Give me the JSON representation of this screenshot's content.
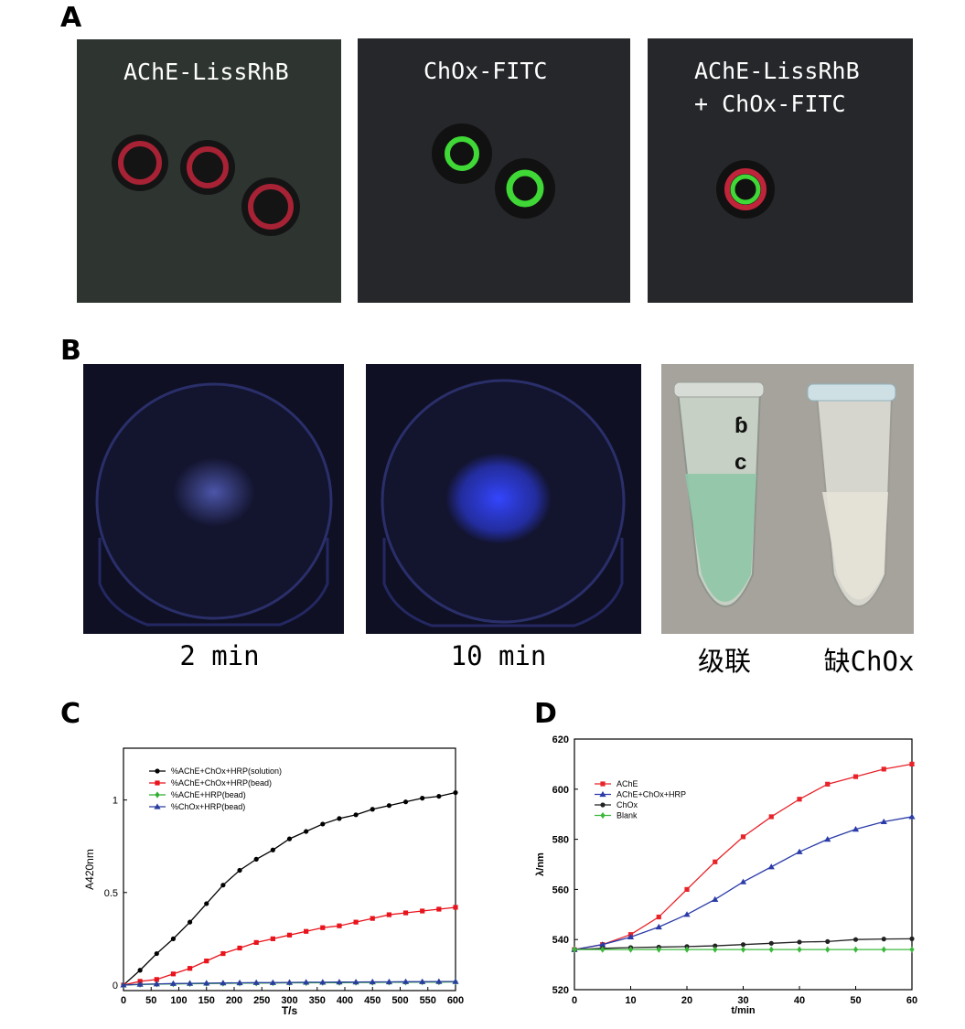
{
  "panel_letters": {
    "a": "A",
    "b": "B",
    "c": "C",
    "d": "D"
  },
  "panel_a": {
    "images": [
      {
        "label": "AChE-LissRhB",
        "background": "#2e3530"
      },
      {
        "label": "ChOx-FITC",
        "background": "#25272a"
      },
      {
        "label": "AChE-LissRhB\n+ ChOx-FITC",
        "background": "#25272a"
      }
    ],
    "colors": {
      "red_ring": "#c0243a",
      "green_ring": "#3fd836"
    }
  },
  "panel_b": {
    "captions": [
      "2 min",
      "10 min",
      "级联",
      "缺ChOx"
    ],
    "colors": {
      "dark_blue": "#10122a",
      "blue_glow": "#3b4fe0",
      "tube_green": "#8fc6a8"
    }
  },
  "chart_data": [
    {
      "type": "line",
      "panel": "C",
      "xlabel": "T/s",
      "ylabel": "A420nm",
      "xlim": [
        0,
        600
      ],
      "ylim": [
        -0.03,
        1.28
      ],
      "xticks": [
        0,
        50,
        100,
        150,
        200,
        250,
        300,
        350,
        400,
        450,
        500,
        550,
        600
      ],
      "yticks": [
        0,
        0.5,
        1
      ],
      "ytick_labels": [
        "0",
        "0.5",
        "1"
      ],
      "legend_position": "top-left",
      "x": [
        0,
        30,
        60,
        90,
        120,
        150,
        180,
        210,
        240,
        270,
        300,
        330,
        360,
        390,
        420,
        450,
        480,
        510,
        540,
        570,
        600
      ],
      "series": [
        {
          "name": "%AChE+ChOx+HRP(solution)",
          "color": "#000000",
          "marker": "circle",
          "values": [
            0,
            0.08,
            0.17,
            0.25,
            0.34,
            0.44,
            0.54,
            0.62,
            0.68,
            0.73,
            0.79,
            0.83,
            0.87,
            0.9,
            0.92,
            0.95,
            0.97,
            0.99,
            1.01,
            1.02,
            1.04
          ]
        },
        {
          "name": "%AChE+ChOx+HRP(bead)",
          "color": "#e8131b",
          "marker": "square",
          "values": [
            0,
            0.02,
            0.03,
            0.06,
            0.09,
            0.13,
            0.17,
            0.2,
            0.23,
            0.25,
            0.27,
            0.29,
            0.31,
            0.32,
            0.34,
            0.36,
            0.38,
            0.39,
            0.4,
            0.41,
            0.42
          ]
        },
        {
          "name": "%AChE+HRP(bead)",
          "color": "#2fae2f",
          "marker": "diamond",
          "values": [
            0,
            0.003,
            0.005,
            0.006,
            0.007,
            0.008,
            0.009,
            0.01,
            0.01,
            0.011,
            0.012,
            0.012,
            0.013,
            0.013,
            0.014,
            0.014,
            0.015,
            0.015,
            0.016,
            0.016,
            0.017
          ]
        },
        {
          "name": "%ChOx+HRP(bead)",
          "color": "#2a3d9e",
          "marker": "triangle",
          "values": [
            0,
            0.004,
            0.006,
            0.008,
            0.009,
            0.01,
            0.011,
            0.012,
            0.013,
            0.013,
            0.014,
            0.015,
            0.015,
            0.016,
            0.016,
            0.017,
            0.017,
            0.018,
            0.018,
            0.019,
            0.019
          ]
        }
      ]
    },
    {
      "type": "line",
      "panel": "D",
      "xlabel": "t/min",
      "ylabel": "λ/nm",
      "xlim": [
        0,
        60
      ],
      "ylim": [
        520,
        620
      ],
      "xticks": [
        0,
        10,
        20,
        30,
        40,
        50,
        60
      ],
      "yticks": [
        520,
        540,
        560,
        580,
        600,
        620
      ],
      "legend_position": "top-left",
      "x": [
        0,
        5,
        10,
        15,
        20,
        25,
        30,
        35,
        40,
        45,
        50,
        55,
        60
      ],
      "series": [
        {
          "name": "AChE",
          "color": "#e8232a",
          "marker": "square",
          "values": [
            536,
            538,
            542,
            549,
            560,
            571,
            581,
            589,
            596,
            602,
            605,
            608,
            610
          ]
        },
        {
          "name": "AChE+ChOx+HRP",
          "color": "#2b3ca8",
          "marker": "triangle",
          "values": [
            536,
            538,
            541,
            545,
            550,
            556,
            563,
            569,
            575,
            580,
            584,
            587,
            589
          ]
        },
        {
          "name": "ChOx",
          "color": "#222222",
          "marker": "circle",
          "values": [
            536,
            536.5,
            536.8,
            537,
            537.2,
            537.5,
            538,
            538.5,
            539,
            539.2,
            540,
            540.2,
            540.3
          ]
        },
        {
          "name": "Blank",
          "color": "#3cb83c",
          "marker": "diamond",
          "values": [
            536,
            536,
            536,
            536,
            536,
            536,
            536,
            536,
            536,
            536,
            536,
            536,
            536
          ]
        }
      ]
    }
  ]
}
